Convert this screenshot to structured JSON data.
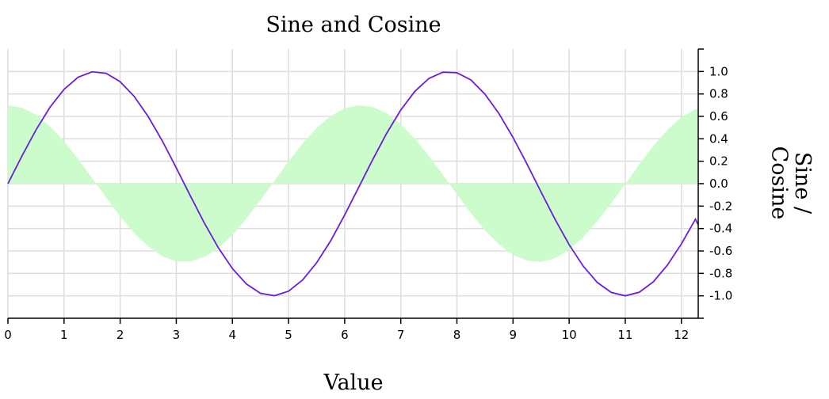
{
  "chart_data": {
    "type": "line",
    "title": "Sine and Cosine",
    "xlabel": "Value",
    "ylabel": "Sine / Cosine",
    "xlim": [
      0,
      12.3
    ],
    "ylim": [
      -1.2,
      1.2
    ],
    "y_axis_side": "right",
    "grid": true,
    "legend": "none",
    "x_ticks": [
      0,
      1,
      2,
      3,
      4,
      5,
      6,
      7,
      8,
      9,
      10,
      11,
      12
    ],
    "y_ticks": [
      -1.0,
      -0.8,
      -0.6,
      -0.4,
      -0.2,
      0.0,
      0.2,
      0.4,
      0.6,
      0.8,
      1.0
    ],
    "x_tick_labels": [
      "0",
      "1",
      "2",
      "3",
      "4",
      "5",
      "6",
      "7",
      "8",
      "9",
      "10",
      "11",
      "12"
    ],
    "y_tick_labels": [
      "-1.0",
      "-0.8",
      "-0.6",
      "-0.4",
      "-0.2",
      "0.0",
      "0.2",
      "0.4",
      "0.6",
      "0.8",
      "1.0"
    ],
    "series": [
      {
        "kind": "area",
        "color": "#ccfccc",
        "x": [
          0,
          0.25,
          0.5,
          0.75,
          1,
          1.25,
          1.5,
          1.75,
          2,
          2.25,
          2.5,
          2.75,
          3,
          3.25,
          3.5,
          3.75,
          4,
          4.25,
          4.5,
          4.75,
          5,
          5.25,
          5.5,
          5.75,
          6,
          6.25,
          6.5,
          6.75,
          7,
          7.25,
          7.5,
          7.75,
          8,
          8.25,
          8.5,
          8.75,
          9,
          9.25,
          9.5,
          9.75,
          10,
          10.25,
          10.5,
          10.75,
          11,
          11.25,
          11.5,
          11.75,
          12,
          12.25
        ],
        "y": [
          0.7,
          0.678,
          0.614,
          0.512,
          0.378,
          0.221,
          0.05,
          -0.124,
          -0.291,
          -0.441,
          -0.56,
          -0.648,
          -0.693,
          -0.694,
          -0.655,
          -0.574,
          -0.458,
          -0.311,
          -0.148,
          0.026,
          0.199,
          0.358,
          0.496,
          0.603,
          0.672,
          0.7,
          0.684,
          0.627,
          0.53,
          0.402,
          0.248,
          0.079,
          -0.097,
          -0.265,
          -0.416,
          -0.542,
          -0.634,
          -0.687,
          -0.698,
          -0.664,
          -0.587,
          -0.479,
          -0.336,
          -0.175,
          -0.003,
          0.172,
          0.336,
          0.479,
          0.592,
          0.664
        ]
      },
      {
        "kind": "line",
        "color": "#6a1ed8",
        "x": [
          0,
          0.25,
          0.5,
          0.75,
          1,
          1.25,
          1.5,
          1.75,
          2,
          2.25,
          2.5,
          2.75,
          3,
          3.25,
          3.5,
          3.75,
          4,
          4.25,
          4.5,
          4.75,
          5,
          5.25,
          5.5,
          5.75,
          6,
          6.25,
          6.5,
          6.75,
          7,
          7.25,
          7.5,
          7.75,
          8,
          8.25,
          8.5,
          8.75,
          9,
          9.25,
          9.5,
          9.75,
          10,
          10.25,
          10.5,
          10.75,
          11,
          11.25,
          11.5,
          11.75,
          12,
          12.25
        ],
        "y": [
          0,
          0.247,
          0.479,
          0.682,
          0.841,
          0.949,
          0.997,
          0.984,
          0.909,
          0.778,
          0.598,
          0.382,
          0.141,
          -0.108,
          -0.351,
          -0.572,
          -0.757,
          -0.895,
          -0.978,
          -0.999,
          -0.959,
          -0.859,
          -0.706,
          -0.51,
          -0.279,
          -0.033,
          0.215,
          0.45,
          0.657,
          0.823,
          0.938,
          0.994,
          0.989,
          0.925,
          0.798,
          0.624,
          0.412,
          0.174,
          -0.075,
          -0.319,
          -0.544,
          -0.735,
          -0.88,
          -0.97,
          -1.0,
          -0.968,
          -0.875,
          -0.727,
          -0.537,
          -0.317
        ]
      }
    ]
  }
}
